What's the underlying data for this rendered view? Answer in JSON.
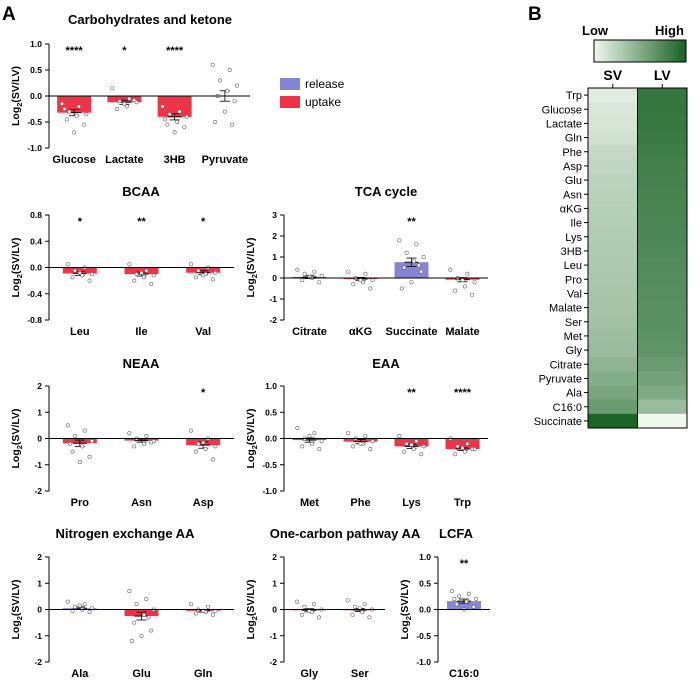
{
  "figure": {
    "panel_a_label": "A",
    "panel_b_label": "B",
    "legend": {
      "release_label": "release",
      "uptake_label": "uptake",
      "release_color": "#8585d6",
      "uptake_color": "#ee3447"
    }
  },
  "chart_data": [
    {
      "type": "bar",
      "id": "carbs",
      "title": "Carbohydrates and ketone",
      "ylabel_main": "Log",
      "ylabel_sub": "2",
      "ylabel_tail": "(SV/LV)",
      "ylim": [
        -1.0,
        1.0
      ],
      "yticks": [
        -1.0,
        -0.5,
        0.0,
        0.5,
        1.0
      ],
      "ytick_labels": [
        "-1.0",
        "-0.5",
        "0.0",
        "0.5",
        "1.0"
      ],
      "categories": [
        "Glucose",
        "Lactate",
        "3HB",
        "Pyruvate"
      ],
      "values": [
        -0.32,
        -0.12,
        -0.4,
        0.0
      ],
      "errors": [
        0.06,
        0.04,
        0.06,
        0.1
      ],
      "kinds": [
        "uptake",
        "uptake",
        "uptake",
        "none"
      ],
      "significance": [
        "****",
        "*",
        "****",
        ""
      ],
      "points": [
        [
          -0.15,
          -0.2,
          -0.3,
          -0.35,
          -0.38,
          -0.45,
          -0.55,
          -0.7,
          -0.25
        ],
        [
          0.15,
          -0.05,
          -0.1,
          -0.12,
          -0.2,
          -0.25,
          -0.08,
          -0.15
        ],
        [
          -0.2,
          -0.3,
          -0.35,
          -0.4,
          -0.5,
          -0.55,
          -0.6,
          -0.7,
          -0.45
        ],
        [
          0.6,
          0.5,
          0.3,
          0.2,
          0.1,
          0.0,
          -0.1,
          -0.3,
          -0.5,
          -0.55
        ]
      ]
    },
    {
      "type": "bar",
      "id": "bcaa",
      "title": "BCAA",
      "ylabel_main": "Log",
      "ylabel_sub": "2",
      "ylabel_tail": "(SV/LV)",
      "ylim": [
        -0.8,
        0.8
      ],
      "yticks": [
        -0.8,
        -0.4,
        0.0,
        0.4,
        0.8
      ],
      "ytick_labels": [
        "-0.8",
        "-0.4",
        "0.0",
        "0.4",
        "0.8"
      ],
      "categories": [
        "Leu",
        "Ile",
        "Val"
      ],
      "values": [
        -0.09,
        -0.1,
        -0.08
      ],
      "errors": [
        0.03,
        0.03,
        0.03
      ],
      "kinds": [
        "uptake",
        "uptake",
        "uptake"
      ],
      "significance": [
        "*",
        "**",
        "*"
      ],
      "points": [
        [
          0.05,
          0.0,
          -0.05,
          -0.1,
          -0.12,
          -0.15,
          -0.2,
          -0.08
        ],
        [
          0.05,
          -0.05,
          -0.1,
          -0.12,
          -0.15,
          -0.2,
          -0.25,
          -0.08
        ],
        [
          0.05,
          0.0,
          -0.05,
          -0.08,
          -0.1,
          -0.15,
          -0.18,
          -0.12
        ]
      ]
    },
    {
      "type": "bar",
      "id": "tca",
      "title": "TCA cycle",
      "ylabel_main": "Log",
      "ylabel_sub": "2",
      "ylabel_tail": "(SV/LV)",
      "ylim": [
        -2,
        3
      ],
      "yticks": [
        -2,
        -1,
        0,
        1,
        2,
        3
      ],
      "ytick_labels": [
        "-2",
        "-1",
        "0",
        "1",
        "2",
        "3"
      ],
      "categories": [
        "Citrate",
        "αKG",
        "Succinate",
        "Malate"
      ],
      "values": [
        0.05,
        -0.05,
        0.75,
        -0.08
      ],
      "errors": [
        0.08,
        0.08,
        0.2,
        0.1
      ],
      "kinds": [
        "uptake",
        "uptake",
        "release",
        "uptake"
      ],
      "significance": [
        "",
        "",
        "**",
        ""
      ],
      "points": [
        [
          0.4,
          0.3,
          0.2,
          0.1,
          0.0,
          -0.1,
          -0.2,
          0.05
        ],
        [
          0.3,
          0.2,
          0.0,
          -0.1,
          -0.2,
          -0.3,
          -0.5,
          -0.1
        ],
        [
          1.8,
          1.6,
          1.2,
          1.0,
          0.8,
          0.5,
          0.3,
          -0.2,
          -0.5,
          0.6
        ],
        [
          0.4,
          0.2,
          0.0,
          -0.2,
          -0.4,
          -0.6,
          -0.8,
          -0.1
        ]
      ]
    },
    {
      "type": "bar",
      "id": "neaa",
      "title": "NEAA",
      "ylabel_main": "Log",
      "ylabel_sub": "2",
      "ylabel_tail": "(SV/LV)",
      "ylim": [
        -2,
        2
      ],
      "yticks": [
        -2,
        -1,
        0,
        1,
        2
      ],
      "ytick_labels": [
        "-2",
        "-1",
        "0",
        "1",
        "2"
      ],
      "categories": [
        "Pro",
        "Asn",
        "Asp"
      ],
      "values": [
        -0.18,
        -0.08,
        -0.25
      ],
      "errors": [
        0.12,
        0.06,
        0.12
      ],
      "kinds": [
        "uptake",
        "uptake",
        "uptake"
      ],
      "significance": [
        "",
        "",
        "*"
      ],
      "points": [
        [
          0.5,
          0.3,
          0.1,
          -0.1,
          -0.3,
          -0.5,
          -0.7,
          -0.9,
          -0.2
        ],
        [
          0.2,
          0.1,
          0.0,
          -0.1,
          -0.2,
          -0.3,
          -0.15
        ],
        [
          0.3,
          0.0,
          -0.2,
          -0.3,
          -0.4,
          -0.5,
          -0.8,
          -0.15
        ]
      ]
    },
    {
      "type": "bar",
      "id": "eaa",
      "title": "EAA",
      "ylabel_main": "Log",
      "ylabel_sub": "2",
      "ylabel_tail": "(SV/LV)",
      "ylim": [
        -1.0,
        1.0
      ],
      "yticks": [
        -1.0,
        -0.5,
        0.0,
        0.5,
        1.0
      ],
      "ytick_labels": [
        "-1.0",
        "-0.5",
        "0.0",
        "0.5",
        "1.0"
      ],
      "categories": [
        "Met",
        "Phe",
        "Lys",
        "Trp"
      ],
      "values": [
        -0.03,
        -0.06,
        -0.15,
        -0.2
      ],
      "errors": [
        0.04,
        0.04,
        0.04,
        0.03
      ],
      "kinds": [
        "uptake",
        "uptake",
        "uptake",
        "uptake"
      ],
      "significance": [
        "",
        "",
        "**",
        "****"
      ],
      "points": [
        [
          0.2,
          0.1,
          0.0,
          -0.05,
          -0.1,
          -0.15,
          -0.2,
          0.05
        ],
        [
          0.1,
          0.05,
          0.0,
          -0.05,
          -0.1,
          -0.15,
          -0.2,
          -0.1
        ],
        [
          0.05,
          -0.05,
          -0.1,
          -0.15,
          -0.2,
          -0.25,
          -0.3,
          -0.12
        ],
        [
          0.0,
          -0.1,
          -0.15,
          -0.2,
          -0.25,
          -0.3,
          -0.2,
          -0.18
        ]
      ]
    },
    {
      "type": "bar",
      "id": "nitrogen",
      "title": "Nitrogen exchange AA",
      "ylabel_main": "Log",
      "ylabel_sub": "2",
      "ylabel_tail": "(SV/LV)",
      "ylim": [
        -2,
        2
      ],
      "yticks": [
        -2,
        -1,
        0,
        1,
        2
      ],
      "ytick_labels": [
        "-2",
        "-1",
        "0",
        "1",
        "2"
      ],
      "categories": [
        "Ala",
        "Glu",
        "Gln"
      ],
      "values": [
        0.05,
        -0.25,
        -0.05
      ],
      "errors": [
        0.05,
        0.15,
        0.05
      ],
      "kinds": [
        "release",
        "uptake",
        "uptake"
      ],
      "significance": [
        "",
        "",
        ""
      ],
      "points": [
        [
          0.3,
          0.2,
          0.1,
          0.05,
          0.0,
          -0.05,
          -0.1,
          0.15
        ],
        [
          0.7,
          0.4,
          0.2,
          0.0,
          -0.2,
          -0.5,
          -0.8,
          -1.0,
          -1.2,
          -0.3
        ],
        [
          0.2,
          0.1,
          0.0,
          -0.05,
          -0.1,
          -0.15,
          -0.2,
          -0.05
        ]
      ]
    },
    {
      "type": "bar",
      "id": "onecarbon",
      "title": "One-carbon pathway AA",
      "ylabel_main": "Log",
      "ylabel_sub": "2",
      "ylabel_tail": "(SV/LV)",
      "ylim": [
        -2,
        2
      ],
      "yticks": [
        -2,
        -1,
        0,
        1,
        2
      ],
      "ytick_labels": [
        "-2",
        "-1",
        "0",
        "1",
        "2"
      ],
      "categories": [
        "Gly",
        "Ser"
      ],
      "values": [
        -0.03,
        -0.02
      ],
      "errors": [
        0.06,
        0.06
      ],
      "kinds": [
        "uptake",
        "uptake"
      ],
      "significance": [
        "",
        ""
      ],
      "points": [
        [
          0.3,
          0.2,
          0.1,
          0.0,
          -0.1,
          -0.2,
          -0.3,
          -0.05
        ],
        [
          0.35,
          0.2,
          0.1,
          0.0,
          -0.1,
          -0.2,
          -0.3,
          0.05
        ]
      ]
    },
    {
      "type": "bar",
      "id": "lcfa",
      "title": "LCFA",
      "ylabel_main": "Log",
      "ylabel_sub": "2",
      "ylabel_tail": "(SV/LV)",
      "ylim": [
        -1.0,
        1.0
      ],
      "yticks": [
        -1.0,
        -0.5,
        0.0,
        0.5,
        1.0
      ],
      "ytick_labels": [
        "-1.0",
        "-0.5",
        "0.0",
        "0.5",
        "1.0"
      ],
      "categories": [
        "C16:0"
      ],
      "values": [
        0.16
      ],
      "errors": [
        0.04
      ],
      "kinds": [
        "release"
      ],
      "significance": [
        "**"
      ],
      "points": [
        [
          0.35,
          0.3,
          0.25,
          0.2,
          0.15,
          0.1,
          0.05,
          0.0,
          0.2
        ]
      ]
    },
    {
      "type": "heatmap",
      "id": "heatmap",
      "legend_low": "Low",
      "legend_high": "High",
      "columns": [
        "SV",
        "LV"
      ],
      "rows": [
        "Trp",
        "Glucose",
        "Lactate",
        "Gln",
        "Phe",
        "Asp",
        "Glu",
        "Asn",
        "αKG",
        "Ile",
        "Lys",
        "3HB",
        "Leu",
        "Pro",
        "Val",
        "Malate",
        "Ser",
        "Met",
        "Gly",
        "Citrate",
        "Pyruvate",
        "Ala",
        "C16:0",
        "Succinate"
      ],
      "values": [
        [
          0.08,
          0.86
        ],
        [
          0.1,
          0.86
        ],
        [
          0.12,
          0.85
        ],
        [
          0.15,
          0.84
        ],
        [
          0.2,
          0.82
        ],
        [
          0.22,
          0.8
        ],
        [
          0.24,
          0.79
        ],
        [
          0.25,
          0.78
        ],
        [
          0.27,
          0.77
        ],
        [
          0.28,
          0.76
        ],
        [
          0.29,
          0.75
        ],
        [
          0.3,
          0.74
        ],
        [
          0.31,
          0.73
        ],
        [
          0.32,
          0.72
        ],
        [
          0.33,
          0.71
        ],
        [
          0.34,
          0.7
        ],
        [
          0.36,
          0.69
        ],
        [
          0.38,
          0.68
        ],
        [
          0.4,
          0.66
        ],
        [
          0.45,
          0.62
        ],
        [
          0.5,
          0.58
        ],
        [
          0.55,
          0.52
        ],
        [
          0.62,
          0.4
        ],
        [
          0.98,
          0.0
        ]
      ]
    }
  ]
}
